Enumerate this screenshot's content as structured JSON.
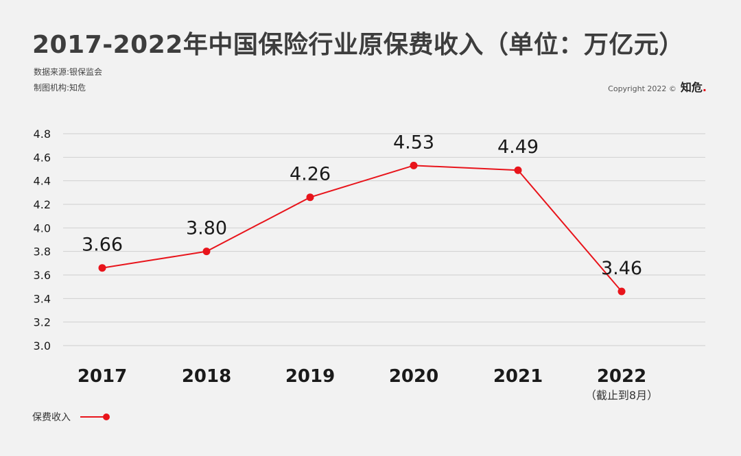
{
  "title": "2017-2022年中国保险行业原保费收入（单位：万亿元）",
  "source": "数据来源:银保监会",
  "maker": "制图机构:知危",
  "copyright": {
    "text": "Copyright 2022 ©",
    "brand": "知危",
    "brand_dot": "."
  },
  "colors": {
    "series": "#e8141b",
    "grid": "#cfcfcf",
    "text": "#1a1a1a"
  },
  "chart_data": {
    "type": "line",
    "categories": [
      "2017",
      "2018",
      "2019",
      "2020",
      "2021",
      "2022"
    ],
    "category_notes": {
      "2022": "（截止到8月）"
    },
    "series": [
      {
        "name": "保费收入",
        "values": [
          3.66,
          3.8,
          4.26,
          4.53,
          4.49,
          3.46
        ]
      }
    ],
    "data_labels": [
      "3.66",
      "3.80",
      "4.26",
      "4.53",
      "4.49",
      "3.46"
    ],
    "ylim": [
      3.0,
      4.8
    ],
    "yticks": [
      "3.0",
      "3.2",
      "3.4",
      "3.6",
      "3.8",
      "4.0",
      "4.2",
      "4.4",
      "4.6",
      "4.8"
    ],
    "grid": true,
    "legend": "bottom-left"
  }
}
